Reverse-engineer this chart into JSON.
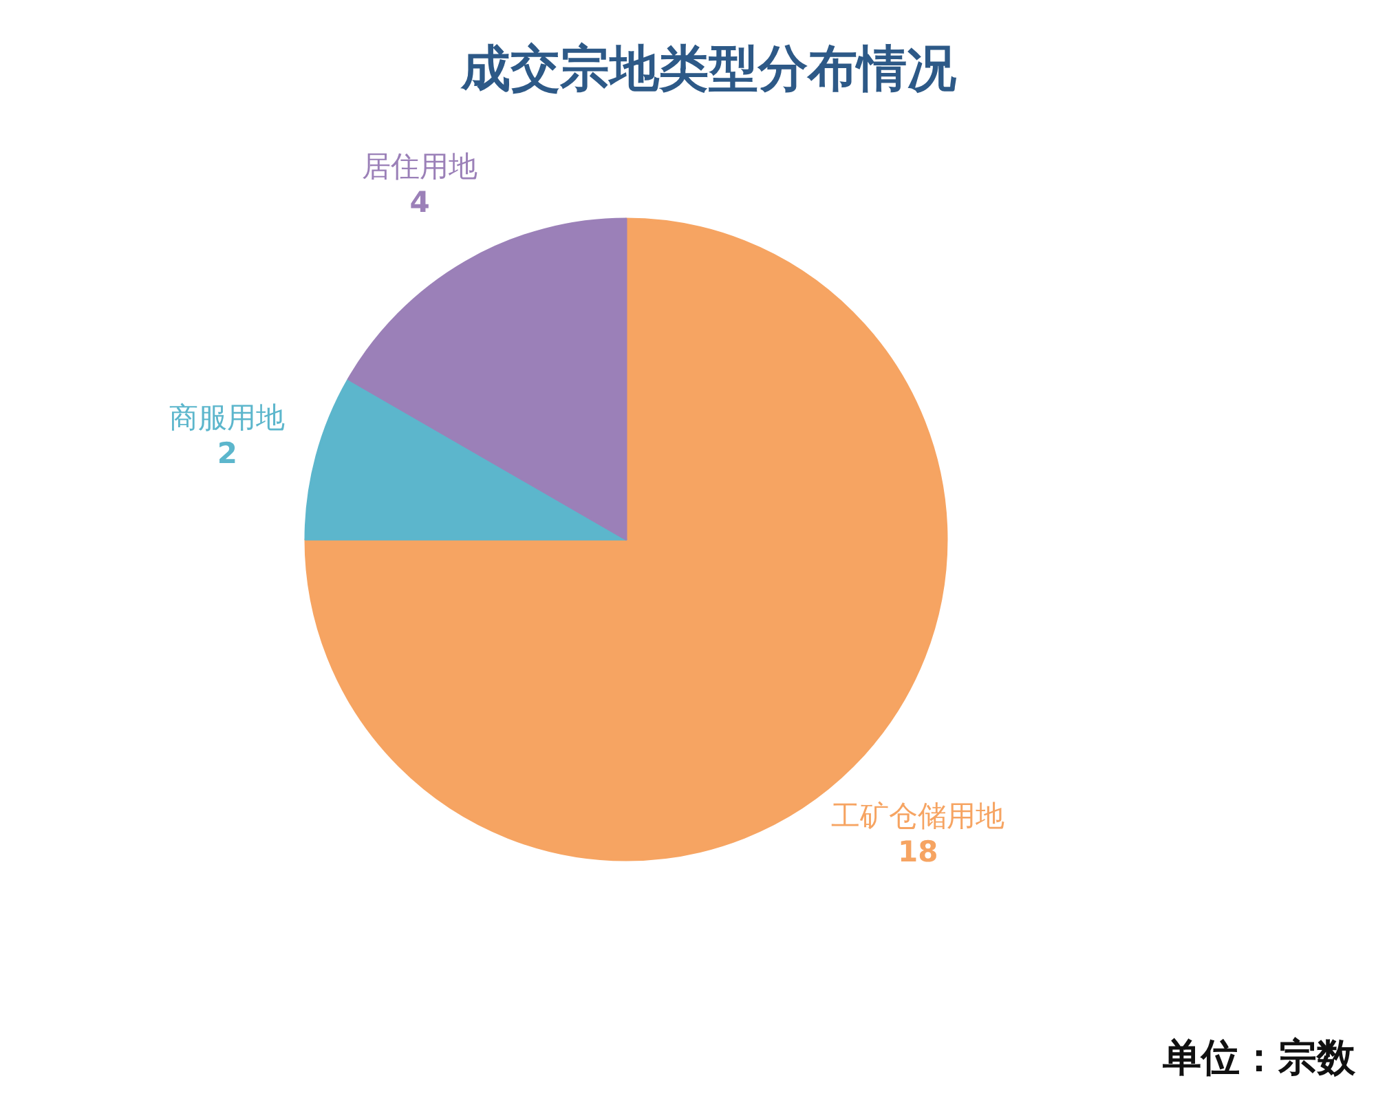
{
  "chart_data": {
    "type": "pie",
    "title": "成交宗地类型分布情况",
    "categories": [
      "工矿仓储用地",
      "商服用地",
      "居住用地"
    ],
    "values": [
      18,
      2,
      4
    ],
    "colors": [
      "#f6a462",
      "#5cb6cc",
      "#9b80b8"
    ],
    "data_labels": true,
    "annotations": [
      "单位：宗数"
    ]
  }
}
